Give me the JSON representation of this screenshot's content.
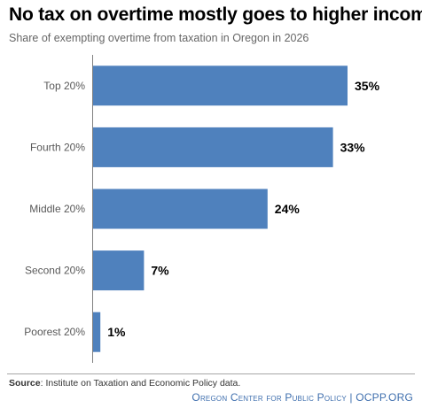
{
  "chart_data": {
    "type": "bar",
    "orientation": "horizontal",
    "title": "No tax on overtime mostly goes to higher income",
    "subtitle": "Share of exempting overtime from taxation in Oregon in 2026",
    "categories": [
      "Top 20%",
      "Fourth 20%",
      "Middle 20%",
      "Second 20%",
      "Poorest 20%"
    ],
    "values": [
      35,
      33,
      24,
      7,
      1
    ],
    "value_labels": [
      "35%",
      "33%",
      "24%",
      "7%",
      "1%"
    ],
    "xlim": [
      0,
      35
    ],
    "bar_color": "#4f81bd",
    "grid": false,
    "legend": "none"
  },
  "source": {
    "label": "Source",
    "text": ": Institute on Taxation and Economic Policy data."
  },
  "footer": {
    "text": "Oregon Center for Public Policy | OCPP.ORG",
    "color": "#3f6fae"
  }
}
